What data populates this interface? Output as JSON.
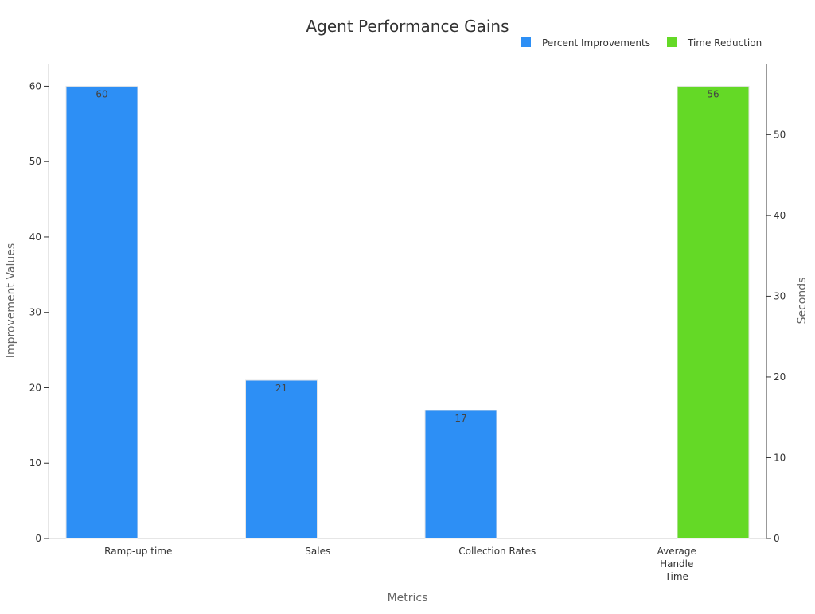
{
  "chart_data": {
    "type": "bar",
    "title": "Agent Performance Gains",
    "xlabel": "Metrics",
    "ylabel": "Improvement Values",
    "y2label": "Seconds",
    "categories": [
      "Ramp-up time",
      "Sales",
      "Collection Rates",
      "Average Handle Time"
    ],
    "series": [
      {
        "name": "Percent Improvements",
        "axis": "left",
        "color": "#2d8ff5",
        "values": [
          60,
          21,
          17,
          null
        ]
      },
      {
        "name": "Time Reduction",
        "axis": "right",
        "color": "#64d926",
        "values": [
          null,
          null,
          null,
          56
        ]
      }
    ],
    "ylim": [
      0,
      63
    ],
    "y2lim": [
      0,
      58.8
    ],
    "yticks": [
      0,
      10,
      20,
      30,
      40,
      50,
      60
    ],
    "y2ticks": [
      0,
      10,
      20,
      30,
      40,
      50
    ],
    "legend_position": "top-right",
    "grid": false
  }
}
